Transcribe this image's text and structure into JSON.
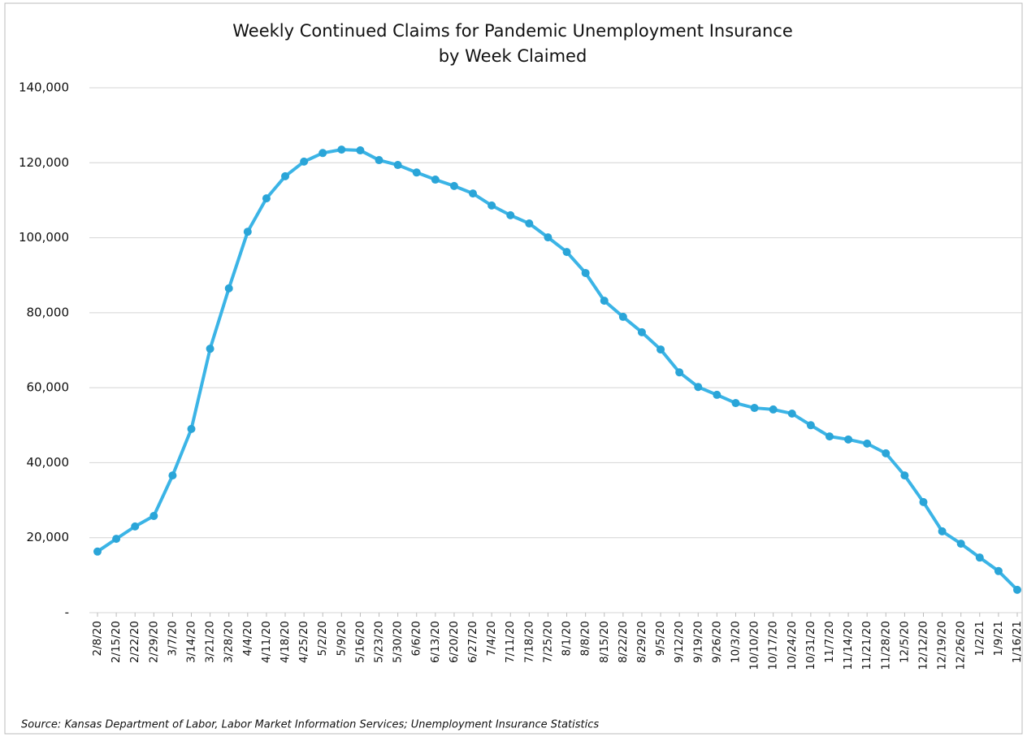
{
  "chart_data": {
    "type": "line",
    "title": "Weekly Continued Claims for Pandemic Unemployment Insurance",
    "subtitle": "by Week Claimed",
    "source": "Source: Kansas Department of Labor, Labor Market Information Services; Unemployment Insurance Statistics",
    "categories": [
      "2/8/20",
      "2/15/20",
      "2/22/20",
      "2/29/20",
      "3/7/20",
      "3/14/20",
      "3/21/20",
      "3/28/20",
      "4/4/20",
      "4/11/20",
      "4/18/20",
      "4/25/20",
      "5/2/20",
      "5/9/20",
      "5/16/20",
      "5/23/20",
      "5/30/20",
      "6/6/20",
      "6/13/20",
      "6/20/20",
      "6/27/20",
      "7/4/20",
      "7/11/20",
      "7/18/20",
      "7/25/20",
      "8/1/20",
      "8/8/20",
      "8/15/20",
      "8/22/20",
      "8/29/20",
      "9/5/20",
      "9/12/20",
      "9/19/20",
      "9/26/20",
      "10/3/20",
      "10/10/20",
      "10/17/20",
      "10/24/20",
      "10/31/20",
      "11/7/20",
      "11/14/20",
      "11/21/20",
      "11/28/20",
      "12/5/20",
      "12/12/20",
      "12/19/20",
      "12/26/20",
      "1/2/21",
      "1/9/21",
      "1/16/21"
    ],
    "values": [
      16300,
      19700,
      23000,
      25800,
      36600,
      49000,
      70400,
      86500,
      101600,
      110500,
      116400,
      120300,
      122600,
      123500,
      123300,
      120700,
      119400,
      117400,
      115500,
      113800,
      111800,
      108600,
      106000,
      103800,
      100100,
      96200,
      90600,
      83200,
      78900,
      74800,
      70200,
      64100,
      60200,
      58100,
      55900,
      54600,
      54200,
      53100,
      50000,
      47000,
      46200,
      45100,
      42500,
      36600,
      29500,
      21700,
      18400,
      14700,
      11100,
      6100
    ],
    "color": "#3bb4e6",
    "ylim": [
      0,
      140000
    ],
    "yticks": [
      {
        "value": 0,
        "label": "-"
      },
      {
        "value": 20000,
        "label": "20,000"
      },
      {
        "value": 40000,
        "label": "40,000"
      },
      {
        "value": 60000,
        "label": "60,000"
      },
      {
        "value": 80000,
        "label": "80,000"
      },
      {
        "value": 100000,
        "label": "100,000"
      },
      {
        "value": 120000,
        "label": "120,000"
      },
      {
        "value": 140000,
        "label": "140,000"
      }
    ],
    "grid": true
  }
}
